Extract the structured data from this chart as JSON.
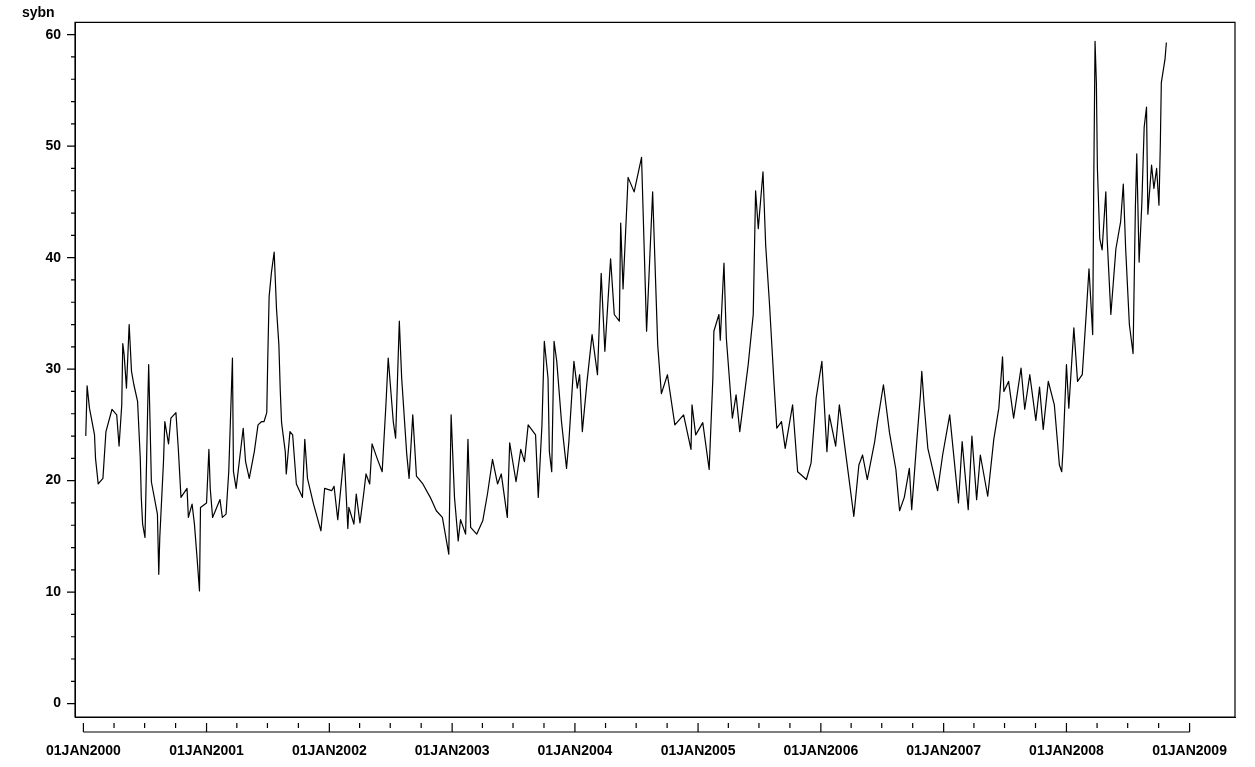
{
  "chart_data": {
    "type": "line",
    "ylabel": "sybn",
    "color": "#000000",
    "marker": "none",
    "line_style": "solid",
    "grid": false,
    "legend": false,
    "xlim": [
      "1999-12-07",
      "2009-05-16"
    ],
    "ylim": [
      -1.2,
      61.1
    ],
    "xticks": [
      {
        "value": "2000-01-01",
        "label": "01JAN2000"
      },
      {
        "value": "2000-04-01",
        "label": null
      },
      {
        "value": "2000-07-01",
        "label": null
      },
      {
        "value": "2000-10-01",
        "label": null
      },
      {
        "value": "2001-01-01",
        "label": "01JAN2001"
      },
      {
        "value": "2001-04-01",
        "label": null
      },
      {
        "value": "2001-07-01",
        "label": null
      },
      {
        "value": "2001-10-01",
        "label": null
      },
      {
        "value": "2002-01-01",
        "label": "01JAN2002"
      },
      {
        "value": "2002-04-01",
        "label": null
      },
      {
        "value": "2002-07-01",
        "label": null
      },
      {
        "value": "2002-10-01",
        "label": null
      },
      {
        "value": "2003-01-01",
        "label": "01JAN2003"
      },
      {
        "value": "2003-04-01",
        "label": null
      },
      {
        "value": "2003-07-01",
        "label": null
      },
      {
        "value": "2003-10-01",
        "label": null
      },
      {
        "value": "2004-01-01",
        "label": "01JAN2004"
      },
      {
        "value": "2004-04-01",
        "label": null
      },
      {
        "value": "2004-07-01",
        "label": null
      },
      {
        "value": "2004-10-01",
        "label": null
      },
      {
        "value": "2005-01-01",
        "label": "01JAN2005"
      },
      {
        "value": "2005-04-01",
        "label": null
      },
      {
        "value": "2005-07-01",
        "label": null
      },
      {
        "value": "2005-10-01",
        "label": null
      },
      {
        "value": "2006-01-01",
        "label": "01JAN2006"
      },
      {
        "value": "2006-04-01",
        "label": null
      },
      {
        "value": "2006-07-01",
        "label": null
      },
      {
        "value": "2006-10-01",
        "label": null
      },
      {
        "value": "2007-01-01",
        "label": "01JAN2007"
      },
      {
        "value": "2007-04-01",
        "label": null
      },
      {
        "value": "2007-07-01",
        "label": null
      },
      {
        "value": "2007-10-01",
        "label": null
      },
      {
        "value": "2008-01-01",
        "label": "01JAN2008"
      },
      {
        "value": "2008-04-01",
        "label": null
      },
      {
        "value": "2008-07-01",
        "label": null
      },
      {
        "value": "2008-10-01",
        "label": null
      },
      {
        "value": "2009-01-01",
        "label": "01JAN2009"
      }
    ],
    "yticks": [
      0,
      {
        "value": 2,
        "label": null
      },
      {
        "value": 4,
        "label": null
      },
      {
        "value": 6,
        "label": null
      },
      {
        "value": 8,
        "label": null
      },
      10,
      {
        "value": 12,
        "label": null
      },
      {
        "value": 14,
        "label": null
      },
      {
        "value": 16,
        "label": null
      },
      {
        "value": 18,
        "label": null
      },
      20,
      {
        "value": 22,
        "label": null
      },
      {
        "value": 24,
        "label": null
      },
      {
        "value": 26,
        "label": null
      },
      {
        "value": 28,
        "label": null
      },
      30,
      {
        "value": 32,
        "label": null
      },
      {
        "value": 34,
        "label": null
      },
      {
        "value": 36,
        "label": null
      },
      {
        "value": 38,
        "label": null
      },
      40,
      {
        "value": 42,
        "label": null
      },
      {
        "value": 44,
        "label": null
      },
      {
        "value": 46,
        "label": null
      },
      {
        "value": 48,
        "label": null
      },
      50,
      {
        "value": 52,
        "label": null
      },
      {
        "value": 54,
        "label": null
      },
      {
        "value": 56,
        "label": null
      },
      {
        "value": 58,
        "label": null
      },
      60
    ],
    "x": [
      "2000-01-08",
      "2000-01-12",
      "2000-01-19",
      "2000-02-03",
      "2000-02-06",
      "2000-02-14",
      "2000-02-28",
      "2000-03-08",
      "2000-03-26",
      "2000-04-09",
      "2000-04-16",
      "2000-04-24",
      "2000-04-27",
      "2000-05-01",
      "2000-05-08",
      "2000-05-16",
      "2000-05-23",
      "2000-05-30",
      "2000-06-10",
      "2000-06-18",
      "2000-06-21",
      "2000-06-25",
      "2000-07-02",
      "2000-07-10",
      "2000-07-13",
      "2000-07-17",
      "2000-07-21",
      "2000-08-08",
      "2000-08-12",
      "2000-08-15",
      "2000-08-26",
      "2000-08-30",
      "2000-09-10",
      "2000-09-17",
      "2000-10-02",
      "2000-10-09",
      "2000-10-17",
      "2000-11-04",
      "2000-11-08",
      "2000-11-19",
      "2000-11-26",
      "2000-12-03",
      "2000-12-11",
      "2000-12-14",
      "2001-01-01",
      "2001-01-08",
      "2001-01-12",
      "2001-01-19",
      "2001-02-10",
      "2001-02-17",
      "2001-02-28",
      "2001-03-08",
      "2001-03-19",
      "2001-03-22",
      "2001-03-30",
      "2001-04-20",
      "2001-04-27",
      "2001-05-08",
      "2001-05-23",
      "2001-06-03",
      "2001-06-14",
      "2001-06-21",
      "2001-06-29",
      "2001-07-02",
      "2001-07-06",
      "2001-07-13",
      "2001-07-21",
      "2001-07-28",
      "2001-08-04",
      "2001-08-08",
      "2001-08-12",
      "2001-08-23",
      "2001-08-26",
      "2001-09-06",
      "2001-09-14",
      "2001-09-25",
      "2001-10-13",
      "2001-10-20",
      "2001-10-28",
      "2001-11-15",
      "2001-12-07",
      "2001-12-18",
      "2002-01-08",
      "2002-01-15",
      "2002-01-26",
      "2002-02-14",
      "2002-02-25",
      "2002-02-28",
      "2002-03-15",
      "2002-03-22",
      "2002-04-02",
      "2002-04-13",
      "2002-04-20",
      "2002-05-01",
      "2002-05-08",
      "2002-05-23",
      "2002-06-07",
      "2002-06-18",
      "2002-06-25",
      "2002-07-10",
      "2002-07-17",
      "2002-07-28",
      "2002-08-04",
      "2002-08-19",
      "2002-08-26",
      "2002-09-06",
      "2002-09-17",
      "2002-10-06",
      "2002-10-28",
      "2002-11-15",
      "2002-12-03",
      "2002-12-22",
      "2002-12-29",
      "2003-01-08",
      "2003-01-19",
      "2003-01-26",
      "2003-02-10",
      "2003-02-17",
      "2003-02-25",
      "2003-03-15",
      "2003-04-02",
      "2003-04-16",
      "2003-05-01",
      "2003-05-16",
      "2003-05-27",
      "2003-06-14",
      "2003-06-21",
      "2003-07-10",
      "2003-07-24",
      "2003-08-04",
      "2003-08-15",
      "2003-09-06",
      "2003-09-14",
      "2003-09-25",
      "2003-10-02",
      "2003-10-13",
      "2003-10-17",
      "2003-10-24",
      "2003-10-31",
      "2003-11-08",
      "2003-11-22",
      "2003-12-07",
      "2003-12-14",
      "2003-12-29",
      "2004-01-08",
      "2004-01-15",
      "2004-01-23",
      "2004-02-06",
      "2004-02-21",
      "2004-03-08",
      "2004-03-19",
      "2004-03-30",
      "2004-04-16",
      "2004-04-27",
      "2004-05-12",
      "2004-05-16",
      "2004-05-23",
      "2004-06-07",
      "2004-06-25",
      "2004-07-17",
      "2004-08-01",
      "2004-08-19",
      "2004-09-03",
      "2004-09-14",
      "2004-10-02",
      "2004-10-24",
      "2004-11-19",
      "2004-12-11",
      "2004-12-14",
      "2004-12-25",
      "2005-01-15",
      "2005-02-03",
      "2005-02-14",
      "2005-02-17",
      "2005-03-04",
      "2005-03-08",
      "2005-03-19",
      "2005-03-26",
      "2005-04-13",
      "2005-04-24",
      "2005-05-05",
      "2005-05-30",
      "2005-06-14",
      "2005-06-21",
      "2005-06-29",
      "2005-07-13",
      "2005-07-21",
      "2005-08-01",
      "2005-08-15",
      "2005-08-23",
      "2005-09-06",
      "2005-09-17",
      "2005-10-09",
      "2005-10-24",
      "2005-11-19",
      "2005-12-03",
      "2005-12-18",
      "2006-01-04",
      "2006-01-19",
      "2006-01-26",
      "2006-02-14",
      "2006-02-25",
      "2006-03-19",
      "2006-04-09",
      "2006-04-24",
      "2006-05-05",
      "2006-05-19",
      "2006-06-10",
      "2006-06-18",
      "2006-07-06",
      "2006-07-24",
      "2006-08-12",
      "2006-08-23",
      "2006-09-06",
      "2006-09-21",
      "2006-09-28",
      "2006-10-13",
      "2006-10-24",
      "2006-10-28",
      "2006-11-04",
      "2006-11-15",
      "2006-12-14",
      "2006-12-29",
      "2007-01-19",
      "2007-02-14",
      "2007-02-25",
      "2007-03-15",
      "2007-03-26",
      "2007-04-09",
      "2007-04-20",
      "2007-05-12",
      "2007-05-30",
      "2007-06-14",
      "2007-06-25",
      "2007-06-29",
      "2007-07-13",
      "2007-07-28",
      "2007-08-19",
      "2007-08-30",
      "2007-09-14",
      "2007-10-02",
      "2007-10-13",
      "2007-10-24",
      "2007-11-08",
      "2007-11-26",
      "2007-12-11",
      "2007-12-18",
      "2007-12-22",
      "2008-01-01",
      "2008-01-08",
      "2008-01-23",
      "2008-02-03",
      "2008-02-17",
      "2008-02-28",
      "2008-03-08",
      "2008-03-19",
      "2008-03-22",
      "2008-03-26",
      "2008-03-30",
      "2008-04-02",
      "2008-04-09",
      "2008-04-16",
      "2008-04-27",
      "2008-05-01",
      "2008-05-12",
      "2008-05-27",
      "2008-06-10",
      "2008-06-18",
      "2008-06-25",
      "2008-07-06",
      "2008-07-17",
      "2008-07-24",
      "2008-07-28",
      "2008-08-04",
      "2008-08-12",
      "2008-08-19",
      "2008-08-26",
      "2008-08-30",
      "2008-09-10",
      "2008-09-17",
      "2008-09-25",
      "2008-10-02",
      "2008-10-06",
      "2008-10-09",
      "2008-10-20",
      "2008-10-24"
    ],
    "values": [
      24.0,
      28.5,
      26.5,
      24.1,
      22.0,
      19.7,
      20.2,
      24.4,
      26.4,
      25.9,
      23.1,
      26.8,
      32.3,
      31.3,
      28.3,
      34.0,
      29.8,
      28.6,
      27.1,
      22.0,
      18.5,
      16.1,
      14.9,
      26.5,
      30.4,
      25.3,
      19.9,
      17.0,
      11.6,
      14.9,
      21.7,
      25.3,
      23.3,
      25.6,
      26.1,
      22.9,
      18.5,
      19.3,
      16.7,
      17.9,
      16.1,
      13.4,
      10.1,
      17.6,
      18.0,
      22.8,
      19.3,
      16.7,
      18.3,
      16.7,
      17.0,
      20.8,
      31.0,
      20.8,
      19.3,
      24.7,
      21.7,
      20.2,
      22.6,
      25.0,
      25.3,
      25.3,
      26.1,
      31.0,
      36.5,
      38.7,
      40.5,
      35.4,
      32.2,
      28.2,
      25.2,
      22.6,
      20.6,
      24.4,
      24.1,
      19.7,
      18.5,
      23.7,
      20.2,
      17.9,
      15.5,
      19.3,
      19.1,
      19.5,
      16.5,
      22.4,
      15.7,
      17.6,
      16.1,
      18.8,
      16.2,
      18.8,
      20.6,
      19.7,
      23.3,
      22.0,
      20.8,
      26.7,
      31.0,
      25.3,
      23.8,
      34.3,
      29.2,
      22.4,
      20.2,
      25.9,
      20.4,
      19.7,
      18.5,
      17.3,
      16.7,
      13.4,
      25.9,
      18.5,
      14.6,
      16.5,
      15.2,
      23.7,
      15.8,
      15.2,
      16.4,
      18.8,
      21.9,
      19.7,
      20.6,
      16.7,
      23.4,
      19.9,
      22.8,
      21.7,
      25.0,
      24.1,
      18.5,
      25.0,
      32.5,
      29.2,
      22.6,
      20.8,
      32.5,
      30.7,
      25.3,
      21.1,
      23.5,
      30.7,
      28.3,
      29.5,
      24.4,
      28.9,
      33.1,
      29.5,
      38.6,
      31.6,
      39.9,
      34.9,
      34.3,
      43.1,
      37.2,
      47.2,
      45.9,
      49.0,
      33.4,
      45.9,
      32.2,
      27.8,
      29.5,
      25.0,
      25.9,
      22.8,
      26.8,
      24.1,
      25.2,
      21.0,
      29.2,
      33.4,
      34.9,
      32.6,
      39.5,
      32.8,
      25.6,
      27.7,
      24.4,
      30.4,
      34.9,
      46.0,
      42.6,
      47.7,
      41.1,
      36.0,
      28.6,
      24.7,
      25.3,
      22.9,
      26.8,
      20.8,
      20.1,
      21.6,
      27.4,
      30.7,
      22.6,
      25.9,
      23.1,
      26.8,
      21.7,
      16.8,
      21.4,
      22.3,
      20.1,
      23.5,
      25.2,
      28.6,
      24.3,
      21.0,
      17.3,
      18.5,
      21.1,
      17.4,
      23.5,
      27.7,
      29.8,
      26.8,
      22.9,
      19.1,
      22.3,
      25.9,
      18.0,
      23.5,
      17.4,
      24.0,
      18.3,
      22.3,
      18.6,
      23.7,
      26.5,
      31.1,
      28.0,
      28.9,
      25.6,
      30.1,
      26.4,
      29.5,
      25.4,
      28.4,
      24.6,
      28.9,
      26.8,
      21.4,
      20.8,
      22.9,
      30.4,
      26.5,
      33.7,
      28.9,
      29.5,
      34.6,
      39.0,
      33.1,
      46.2,
      59.4,
      55.6,
      48.0,
      41.7,
      40.7,
      45.9,
      41.7,
      34.9,
      40.8,
      43.2,
      46.6,
      40.8,
      34.0,
      31.4,
      44.7,
      49.3,
      39.6,
      44.8,
      51.7,
      53.5,
      43.9,
      48.3,
      46.2,
      48.0,
      44.7,
      50.1,
      55.7,
      57.8,
      59.3
    ]
  }
}
